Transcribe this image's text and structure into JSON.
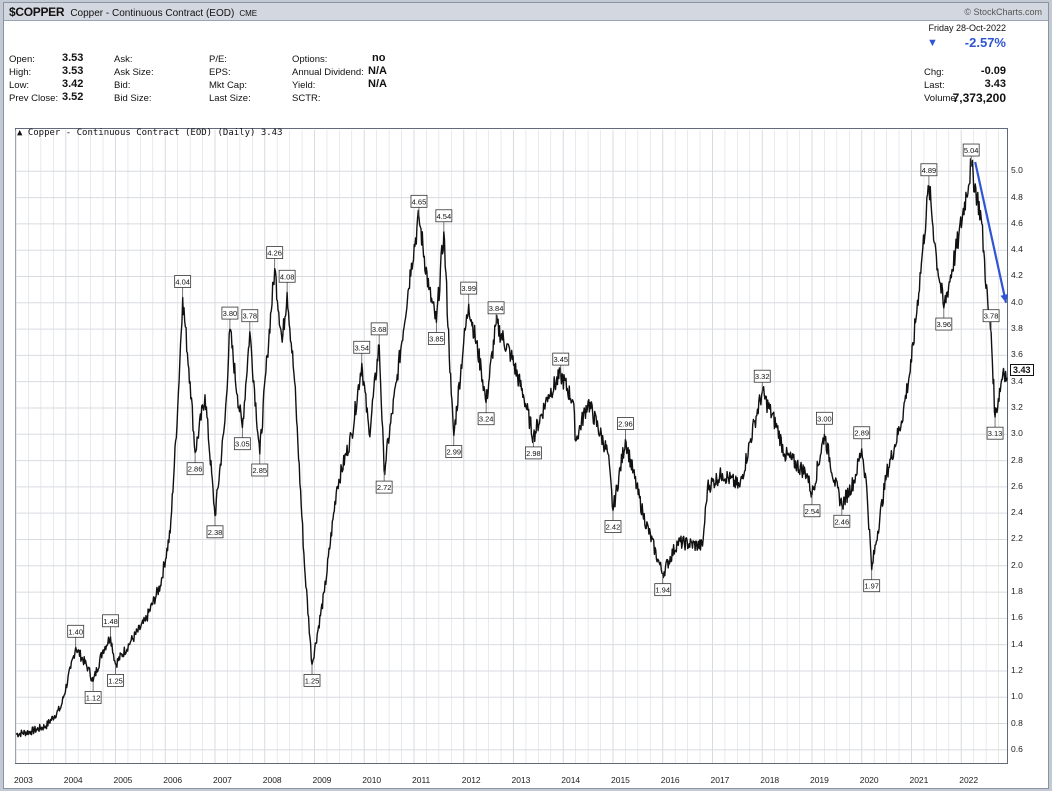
{
  "header": {
    "symbol": "$COPPER",
    "description": "Copper - Continuous Contract (EOD)",
    "exchange": "CME",
    "brand": "© StockCharts.com"
  },
  "quote": {
    "open_label": "Open:",
    "open": "3.53",
    "high_label": "High:",
    "high": "3.53",
    "low_label": "Low:",
    "low": "3.42",
    "prevclose_label": "Prev Close:",
    "prevclose": "3.52",
    "ask_label": "Ask:",
    "asksize_label": "Ask Size:",
    "bid_label": "Bid:",
    "bidsize_label": "Bid Size:",
    "pe_label": "P/E:",
    "eps_label": "EPS:",
    "mktcap_label": "Mkt Cap:",
    "lastsize_label": "Last Size:",
    "options_label": "Options:",
    "options": "no",
    "dividend_label": "Annual Dividend:",
    "dividend": "N/A",
    "yield_label": "Yield:",
    "yield": "N/A",
    "sctr_label": "SCTR:",
    "date": "Friday  28-Oct-2022",
    "change_pct": "-2.57%",
    "chg_label": "Chg:",
    "chg": "-0.09",
    "last_label": "Last:",
    "last": "3.43",
    "volume_label": "Volume:",
    "volume": "7,373,200"
  },
  "series_title": "Copper - Continuous Contract (EOD) (Daily) 3.43",
  "last_badge": "3.43",
  "colors": {
    "price": "#111111",
    "arrow": "#2f55d4",
    "grid": "#d8dbe0",
    "change_down": "#2f55d4"
  },
  "chart_data": {
    "type": "line",
    "title": "Copper - Continuous Contract (EOD) (Daily) 3.43",
    "ylim": [
      0.5,
      5.2
    ],
    "xlim": [
      2003.0,
      2022.92
    ],
    "yticks": [
      0.6,
      0.8,
      1.0,
      1.2,
      1.4,
      1.6,
      1.8,
      2.0,
      2.2,
      2.4,
      2.6,
      2.8,
      3.0,
      3.2,
      3.4,
      3.6,
      3.8,
      4.0,
      4.2,
      4.4,
      4.6,
      4.8,
      5.0
    ],
    "xticks": [
      "2003",
      "2004",
      "2005",
      "2006",
      "2007",
      "2008",
      "2009",
      "2010",
      "2011",
      "2012",
      "2013",
      "2014",
      "2015",
      "2016",
      "2017",
      "2018",
      "2019",
      "2020",
      "2021",
      "2022"
    ],
    "grid": true,
    "series": [
      {
        "points": [
          [
            2003.0,
            0.72
          ],
          [
            2003.3,
            0.74
          ],
          [
            2003.6,
            0.78
          ],
          [
            2003.9,
            0.92
          ],
          [
            2004.1,
            1.22
          ],
          [
            2004.2,
            1.38
          ],
          [
            2004.45,
            1.22
          ],
          [
            2004.55,
            1.12
          ],
          [
            2004.75,
            1.36
          ],
          [
            2004.9,
            1.46
          ],
          [
            2005.0,
            1.25
          ],
          [
            2005.3,
            1.42
          ],
          [
            2005.6,
            1.58
          ],
          [
            2005.9,
            1.85
          ],
          [
            2006.1,
            2.25
          ],
          [
            2006.25,
            3.2
          ],
          [
            2006.35,
            4.04
          ],
          [
            2006.5,
            3.4
          ],
          [
            2006.6,
            2.86
          ],
          [
            2006.8,
            3.3
          ],
          [
            2007.0,
            2.38
          ],
          [
            2007.2,
            3.1
          ],
          [
            2007.3,
            3.8
          ],
          [
            2007.45,
            3.3
          ],
          [
            2007.55,
            3.05
          ],
          [
            2007.7,
            3.78
          ],
          [
            2007.9,
            2.85
          ],
          [
            2008.05,
            3.6
          ],
          [
            2008.2,
            4.26
          ],
          [
            2008.35,
            3.7
          ],
          [
            2008.45,
            4.08
          ],
          [
            2008.6,
            3.4
          ],
          [
            2008.8,
            2.0
          ],
          [
            2008.95,
            1.25
          ],
          [
            2009.2,
            1.8
          ],
          [
            2009.45,
            2.6
          ],
          [
            2009.75,
            3.0
          ],
          [
            2009.95,
            3.54
          ],
          [
            2010.1,
            3.0
          ],
          [
            2010.3,
            3.68
          ],
          [
            2010.4,
            2.72
          ],
          [
            2010.65,
            3.4
          ],
          [
            2010.95,
            4.3
          ],
          [
            2011.1,
            4.65
          ],
          [
            2011.3,
            4.1
          ],
          [
            2011.45,
            3.85
          ],
          [
            2011.6,
            4.54
          ],
          [
            2011.75,
            3.3
          ],
          [
            2011.8,
            2.99
          ],
          [
            2012.0,
            3.7
          ],
          [
            2012.1,
            3.99
          ],
          [
            2012.35,
            3.5
          ],
          [
            2012.45,
            3.24
          ],
          [
            2012.65,
            3.84
          ],
          [
            2012.95,
            3.6
          ],
          [
            2013.2,
            3.3
          ],
          [
            2013.4,
            2.98
          ],
          [
            2013.7,
            3.3
          ],
          [
            2013.95,
            3.45
          ],
          [
            2014.2,
            3.25
          ],
          [
            2014.25,
            2.95
          ],
          [
            2014.5,
            3.25
          ],
          [
            2014.9,
            2.85
          ],
          [
            2015.0,
            2.42
          ],
          [
            2015.25,
            2.96
          ],
          [
            2015.6,
            2.4
          ],
          [
            2015.9,
            2.05
          ],
          [
            2016.0,
            1.94
          ],
          [
            2016.3,
            2.18
          ],
          [
            2016.8,
            2.15
          ],
          [
            2016.9,
            2.6
          ],
          [
            2017.2,
            2.7
          ],
          [
            2017.55,
            2.6
          ],
          [
            2017.85,
            3.1
          ],
          [
            2018.0,
            3.32
          ],
          [
            2018.3,
            3.05
          ],
          [
            2018.45,
            2.85
          ],
          [
            2018.9,
            2.7
          ],
          [
            2019.0,
            2.54
          ],
          [
            2019.25,
            3.0
          ],
          [
            2019.45,
            2.65
          ],
          [
            2019.6,
            2.46
          ],
          [
            2019.85,
            2.65
          ],
          [
            2020.0,
            2.89
          ],
          [
            2020.1,
            2.6
          ],
          [
            2020.2,
            1.97
          ],
          [
            2020.5,
            2.7
          ],
          [
            2020.8,
            3.1
          ],
          [
            2021.0,
            3.55
          ],
          [
            2021.2,
            4.3
          ],
          [
            2021.35,
            4.89
          ],
          [
            2021.5,
            4.35
          ],
          [
            2021.65,
            3.96
          ],
          [
            2021.95,
            4.5
          ],
          [
            2022.2,
            5.04
          ],
          [
            2022.4,
            4.65
          ],
          [
            2022.55,
            3.9
          ],
          [
            2022.6,
            3.78
          ],
          [
            2022.68,
            3.13
          ],
          [
            2022.85,
            3.5
          ],
          [
            2022.92,
            3.43
          ]
        ]
      }
    ],
    "annotations": [
      {
        "label": "1.40",
        "x": 2004.2,
        "y": 1.38,
        "pos": "above"
      },
      {
        "label": "1.12",
        "x": 2004.55,
        "y": 1.12,
        "pos": "below"
      },
      {
        "label": "1.48",
        "x": 2004.9,
        "y": 1.46,
        "pos": "above"
      },
      {
        "label": "1.25",
        "x": 2005.0,
        "y": 1.25,
        "pos": "below"
      },
      {
        "label": "4.04",
        "x": 2006.35,
        "y": 4.04,
        "pos": "above"
      },
      {
        "label": "2.86",
        "x": 2006.6,
        "y": 2.86,
        "pos": "below"
      },
      {
        "label": "2.38",
        "x": 2007.0,
        "y": 2.38,
        "pos": "below"
      },
      {
        "label": "3.80",
        "x": 2007.3,
        "y": 3.8,
        "pos": "above"
      },
      {
        "label": "3.05",
        "x": 2007.55,
        "y": 3.05,
        "pos": "below"
      },
      {
        "label": "3.78",
        "x": 2007.7,
        "y": 3.78,
        "pos": "above"
      },
      {
        "label": "2.85",
        "x": 2007.9,
        "y": 2.85,
        "pos": "below"
      },
      {
        "label": "4.26",
        "x": 2008.2,
        "y": 4.26,
        "pos": "above"
      },
      {
        "label": "4.08",
        "x": 2008.45,
        "y": 4.08,
        "pos": "above"
      },
      {
        "label": "1.25",
        "x": 2008.95,
        "y": 1.25,
        "pos": "below"
      },
      {
        "label": "3.54",
        "x": 2009.95,
        "y": 3.54,
        "pos": "above"
      },
      {
        "label": "3.68",
        "x": 2010.3,
        "y": 3.68,
        "pos": "above"
      },
      {
        "label": "2.72",
        "x": 2010.4,
        "y": 2.72,
        "pos": "below"
      },
      {
        "label": "4.65",
        "x": 2011.1,
        "y": 4.65,
        "pos": "above"
      },
      {
        "label": "3.85",
        "x": 2011.45,
        "y": 3.85,
        "pos": "below"
      },
      {
        "label": "4.54",
        "x": 2011.6,
        "y": 4.54,
        "pos": "above"
      },
      {
        "label": "2.99",
        "x": 2011.8,
        "y": 2.99,
        "pos": "below"
      },
      {
        "label": "3.99",
        "x": 2012.1,
        "y": 3.99,
        "pos": "above"
      },
      {
        "label": "3.24",
        "x": 2012.45,
        "y": 3.24,
        "pos": "below"
      },
      {
        "label": "3.84",
        "x": 2012.65,
        "y": 3.84,
        "pos": "above"
      },
      {
        "label": "2.98",
        "x": 2013.4,
        "y": 2.98,
        "pos": "below"
      },
      {
        "label": "3.45",
        "x": 2013.95,
        "y": 3.45,
        "pos": "above"
      },
      {
        "label": "2.96",
        "x": 2015.25,
        "y": 2.96,
        "pos": "above"
      },
      {
        "label": "2.42",
        "x": 2015.0,
        "y": 2.42,
        "pos": "below"
      },
      {
        "label": "1.94",
        "x": 2016.0,
        "y": 1.94,
        "pos": "below"
      },
      {
        "label": "3.32",
        "x": 2018.0,
        "y": 3.32,
        "pos": "above"
      },
      {
        "label": "2.54",
        "x": 2019.0,
        "y": 2.54,
        "pos": "below"
      },
      {
        "label": "3.00",
        "x": 2019.25,
        "y": 3.0,
        "pos": "above"
      },
      {
        "label": "2.46",
        "x": 2019.6,
        "y": 2.46,
        "pos": "below"
      },
      {
        "label": "2.89",
        "x": 2020.0,
        "y": 2.89,
        "pos": "above"
      },
      {
        "label": "1.97",
        "x": 2020.2,
        "y": 1.97,
        "pos": "below"
      },
      {
        "label": "4.89",
        "x": 2021.35,
        "y": 4.89,
        "pos": "above"
      },
      {
        "label": "3.96",
        "x": 2021.65,
        "y": 3.96,
        "pos": "below"
      },
      {
        "label": "5.04",
        "x": 2022.2,
        "y": 5.04,
        "pos": "above"
      },
      {
        "label": "3.78",
        "x": 2022.6,
        "y": 3.78,
        "pos": "above"
      },
      {
        "label": "3.13",
        "x": 2022.68,
        "y": 3.13,
        "pos": "below"
      }
    ],
    "trend_arrow": {
      "from": [
        2022.2,
        5.04
      ],
      "to": [
        2022.9,
        4.0
      ]
    }
  }
}
